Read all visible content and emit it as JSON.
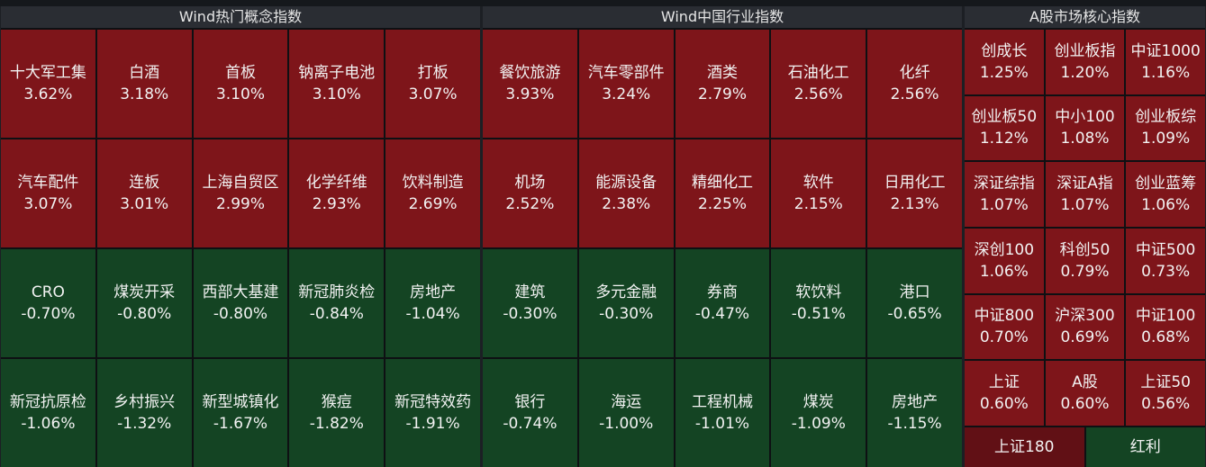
{
  "colors": {
    "up": "#7e151a",
    "down": "#144423",
    "header": "#2a2d33"
  },
  "panels": [
    {
      "title": "Wind热门概念指数",
      "cells": [
        {
          "name": "十大军工集",
          "pct": "3.62%",
          "dir": "up"
        },
        {
          "name": "白酒",
          "pct": "3.18%",
          "dir": "up"
        },
        {
          "name": "首板",
          "pct": "3.10%",
          "dir": "up"
        },
        {
          "name": "钠离子电池",
          "pct": "3.10%",
          "dir": "up"
        },
        {
          "name": "打板",
          "pct": "3.07%",
          "dir": "up"
        },
        {
          "name": "汽车配件",
          "pct": "3.07%",
          "dir": "up"
        },
        {
          "name": "连板",
          "pct": "3.01%",
          "dir": "up"
        },
        {
          "name": "上海自贸区",
          "pct": "2.99%",
          "dir": "up"
        },
        {
          "name": "化学纤维",
          "pct": "2.93%",
          "dir": "up"
        },
        {
          "name": "饮料制造",
          "pct": "2.69%",
          "dir": "up"
        },
        {
          "name": "CRO",
          "pct": "-0.70%",
          "dir": "down"
        },
        {
          "name": "煤炭开采",
          "pct": "-0.80%",
          "dir": "down"
        },
        {
          "name": "西部大基建",
          "pct": "-0.80%",
          "dir": "down"
        },
        {
          "name": "新冠肺炎检",
          "pct": "-0.84%",
          "dir": "down"
        },
        {
          "name": "房地产",
          "pct": "-1.04%",
          "dir": "down"
        },
        {
          "name": "新冠抗原检",
          "pct": "-1.06%",
          "dir": "down"
        },
        {
          "name": "乡村振兴",
          "pct": "-1.32%",
          "dir": "down"
        },
        {
          "name": "新型城镇化",
          "pct": "-1.67%",
          "dir": "down"
        },
        {
          "name": "猴痘",
          "pct": "-1.82%",
          "dir": "down"
        },
        {
          "name": "新冠特效药",
          "pct": "-1.91%",
          "dir": "down"
        }
      ]
    },
    {
      "title": "Wind中国行业指数",
      "cells": [
        {
          "name": "餐饮旅游",
          "pct": "3.93%",
          "dir": "up"
        },
        {
          "name": "汽车零部件",
          "pct": "3.24%",
          "dir": "up"
        },
        {
          "name": "酒类",
          "pct": "2.79%",
          "dir": "up"
        },
        {
          "name": "石油化工",
          "pct": "2.56%",
          "dir": "up"
        },
        {
          "name": "化纤",
          "pct": "2.56%",
          "dir": "up"
        },
        {
          "name": "机场",
          "pct": "2.52%",
          "dir": "up"
        },
        {
          "name": "能源设备",
          "pct": "2.38%",
          "dir": "up"
        },
        {
          "name": "精细化工",
          "pct": "2.25%",
          "dir": "up"
        },
        {
          "name": "软件",
          "pct": "2.15%",
          "dir": "up"
        },
        {
          "name": "日用化工",
          "pct": "2.13%",
          "dir": "up"
        },
        {
          "name": "建筑",
          "pct": "-0.30%",
          "dir": "down"
        },
        {
          "name": "多元金融",
          "pct": "-0.30%",
          "dir": "down"
        },
        {
          "name": "券商",
          "pct": "-0.47%",
          "dir": "down"
        },
        {
          "name": "软饮料",
          "pct": "-0.51%",
          "dir": "down"
        },
        {
          "name": "港口",
          "pct": "-0.65%",
          "dir": "down"
        },
        {
          "name": "银行",
          "pct": "-0.74%",
          "dir": "down"
        },
        {
          "name": "海运",
          "pct": "-1.00%",
          "dir": "down"
        },
        {
          "name": "工程机械",
          "pct": "-1.01%",
          "dir": "down"
        },
        {
          "name": "煤炭",
          "pct": "-1.09%",
          "dir": "down"
        },
        {
          "name": "房地产",
          "pct": "-1.15%",
          "dir": "down"
        }
      ]
    },
    {
      "title": "A股市场核心指数",
      "cells": [
        {
          "name": "创成长",
          "pct": "1.25%",
          "dir": "up"
        },
        {
          "name": "创业板指",
          "pct": "1.20%",
          "dir": "up"
        },
        {
          "name": "中证1000",
          "pct": "1.16%",
          "dir": "up"
        },
        {
          "name": "创业板50",
          "pct": "1.12%",
          "dir": "up"
        },
        {
          "name": "中小100",
          "pct": "1.08%",
          "dir": "up"
        },
        {
          "name": "创业板综",
          "pct": "1.09%",
          "dir": "up"
        },
        {
          "name": "深证综指",
          "pct": "1.07%",
          "dir": "up"
        },
        {
          "name": "深证A指",
          "pct": "1.07%",
          "dir": "up"
        },
        {
          "name": "创业蓝筹",
          "pct": "1.06%",
          "dir": "up"
        },
        {
          "name": "深创100",
          "pct": "1.06%",
          "dir": "up"
        },
        {
          "name": "科创50",
          "pct": "0.79%",
          "dir": "up"
        },
        {
          "name": "中证500",
          "pct": "0.73%",
          "dir": "up"
        },
        {
          "name": "中证800",
          "pct": "0.70%",
          "dir": "up"
        },
        {
          "name": "沪深300",
          "pct": "0.69%",
          "dir": "up"
        },
        {
          "name": "中证100",
          "pct": "0.68%",
          "dir": "up"
        },
        {
          "name": "上证",
          "pct": "0.60%",
          "dir": "up"
        },
        {
          "name": "A股",
          "pct": "0.60%",
          "dir": "up"
        },
        {
          "name": "上证50",
          "pct": "0.56%",
          "dir": "up"
        }
      ],
      "bottom": [
        {
          "name": "上证180",
          "dir": "up"
        },
        {
          "name": "红利",
          "dir": "down"
        }
      ]
    }
  ]
}
